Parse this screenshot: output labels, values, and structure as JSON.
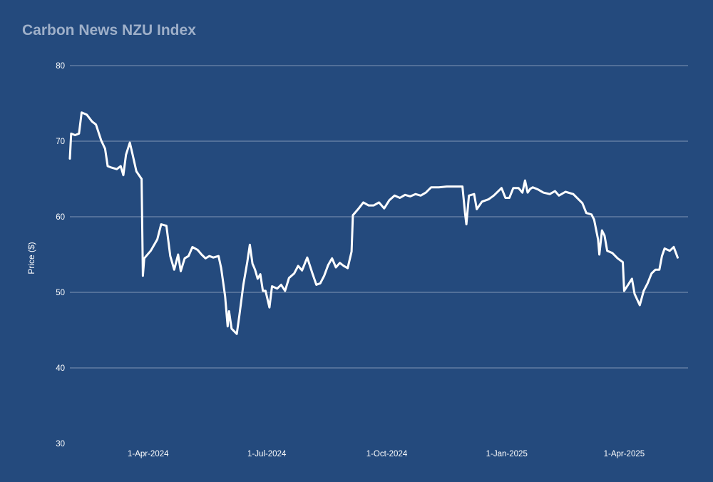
{
  "chart_data": {
    "type": "line",
    "title": "Carbon News NZU Index",
    "ylabel": "Price ($)",
    "xlabel": "",
    "ylim": [
      30,
      80
    ],
    "xlim": [
      "2024-02-01",
      "2025-05-20"
    ],
    "grid": true,
    "yticks": [
      30,
      40,
      50,
      60,
      70,
      80
    ],
    "xticks": [
      {
        "date": "2024-04-01",
        "label": "1-Apr-2024"
      },
      {
        "date": "2024-07-01",
        "label": "1-Jul-2024"
      },
      {
        "date": "2024-10-01",
        "label": "1-Oct-2024"
      },
      {
        "date": "2025-01-01",
        "label": "1-Jan-2025"
      },
      {
        "date": "2025-04-01",
        "label": "1-Apr-2025"
      }
    ],
    "series": [
      {
        "color": "#ffffff",
        "points": [
          [
            "2024-02-01",
            67.7
          ],
          [
            "2024-02-02",
            71.0
          ],
          [
            "2024-02-05",
            70.8
          ],
          [
            "2024-02-08",
            71.0
          ],
          [
            "2024-02-10",
            73.8
          ],
          [
            "2024-02-14",
            73.5
          ],
          [
            "2024-02-18",
            72.6
          ],
          [
            "2024-02-21",
            72.2
          ],
          [
            "2024-02-25",
            70.1
          ],
          [
            "2024-02-28",
            69.0
          ],
          [
            "2024-03-01",
            66.7
          ],
          [
            "2024-03-04",
            66.5
          ],
          [
            "2024-03-08",
            66.3
          ],
          [
            "2024-03-11",
            66.7
          ],
          [
            "2024-03-13",
            65.5
          ],
          [
            "2024-03-15",
            68.2
          ],
          [
            "2024-03-18",
            69.8
          ],
          [
            "2024-03-20",
            68.3
          ],
          [
            "2024-03-23",
            66.0
          ],
          [
            "2024-03-27",
            65.0
          ],
          [
            "2024-03-28",
            52.2
          ],
          [
            "2024-03-29",
            54.5
          ],
          [
            "2024-04-03",
            55.5
          ],
          [
            "2024-04-08",
            57.0
          ],
          [
            "2024-04-11",
            59.0
          ],
          [
            "2024-04-15",
            58.8
          ],
          [
            "2024-04-18",
            54.8
          ],
          [
            "2024-04-21",
            53.0
          ],
          [
            "2024-04-24",
            55.0
          ],
          [
            "2024-04-26",
            52.8
          ],
          [
            "2024-04-29",
            54.5
          ],
          [
            "2024-05-02",
            54.8
          ],
          [
            "2024-05-05",
            56.0
          ],
          [
            "2024-05-09",
            55.6
          ],
          [
            "2024-05-12",
            55.0
          ],
          [
            "2024-05-15",
            54.5
          ],
          [
            "2024-05-18",
            54.8
          ],
          [
            "2024-05-21",
            54.6
          ],
          [
            "2024-05-25",
            54.8
          ],
          [
            "2024-05-27",
            53.2
          ],
          [
            "2024-05-30",
            49.5
          ],
          [
            "2024-06-01",
            45.5
          ],
          [
            "2024-06-02",
            47.5
          ],
          [
            "2024-06-04",
            45.2
          ],
          [
            "2024-06-08",
            44.5
          ],
          [
            "2024-06-10",
            47.0
          ],
          [
            "2024-06-13",
            51.0
          ],
          [
            "2024-06-16",
            54.0
          ],
          [
            "2024-06-18",
            56.3
          ],
          [
            "2024-06-20",
            53.8
          ],
          [
            "2024-06-22",
            53.0
          ],
          [
            "2024-06-24",
            51.8
          ],
          [
            "2024-06-26",
            52.4
          ],
          [
            "2024-06-28",
            50.2
          ],
          [
            "2024-06-30",
            50.2
          ],
          [
            "2024-07-03",
            48.0
          ],
          [
            "2024-07-05",
            50.8
          ],
          [
            "2024-07-09",
            50.5
          ],
          [
            "2024-07-12",
            51.0
          ],
          [
            "2024-07-15",
            50.2
          ],
          [
            "2024-07-18",
            51.9
          ],
          [
            "2024-07-22",
            52.5
          ],
          [
            "2024-07-25",
            53.5
          ],
          [
            "2024-07-28",
            52.9
          ],
          [
            "2024-08-01",
            54.6
          ],
          [
            "2024-08-05",
            52.5
          ],
          [
            "2024-08-08",
            51.0
          ],
          [
            "2024-08-11",
            51.2
          ],
          [
            "2024-08-14",
            52.2
          ],
          [
            "2024-08-17",
            53.6
          ],
          [
            "2024-08-20",
            54.5
          ],
          [
            "2024-08-23",
            53.3
          ],
          [
            "2024-08-26",
            53.9
          ],
          [
            "2024-08-29",
            53.5
          ],
          [
            "2024-09-01",
            53.2
          ],
          [
            "2024-09-04",
            55.4
          ],
          [
            "2024-09-05",
            60.2
          ],
          [
            "2024-09-09",
            61.0
          ],
          [
            "2024-09-13",
            61.9
          ],
          [
            "2024-09-17",
            61.5
          ],
          [
            "2024-09-21",
            61.5
          ],
          [
            "2024-09-25",
            61.9
          ],
          [
            "2024-09-29",
            61.1
          ],
          [
            "2024-10-03",
            62.2
          ],
          [
            "2024-10-07",
            62.8
          ],
          [
            "2024-10-11",
            62.5
          ],
          [
            "2024-10-15",
            62.9
          ],
          [
            "2024-10-19",
            62.7
          ],
          [
            "2024-10-23",
            63.0
          ],
          [
            "2024-10-27",
            62.8
          ],
          [
            "2024-10-31",
            63.2
          ],
          [
            "2024-11-04",
            63.9
          ],
          [
            "2024-11-10",
            63.9
          ],
          [
            "2024-11-16",
            64.0
          ],
          [
            "2024-11-22",
            64.0
          ],
          [
            "2024-11-28",
            64.0
          ],
          [
            "2024-11-30",
            60.5
          ],
          [
            "2024-12-01",
            59.0
          ],
          [
            "2024-12-03",
            62.8
          ],
          [
            "2024-12-07",
            63.0
          ],
          [
            "2024-12-09",
            61.0
          ],
          [
            "2024-12-13",
            62.0
          ],
          [
            "2024-12-18",
            62.3
          ],
          [
            "2024-12-22",
            62.8
          ],
          [
            "2024-12-28",
            63.8
          ],
          [
            "2024-12-31",
            62.5
          ],
          [
            "2025-01-03",
            62.5
          ],
          [
            "2025-01-06",
            63.8
          ],
          [
            "2025-01-10",
            63.8
          ],
          [
            "2025-01-13",
            63.2
          ],
          [
            "2025-01-15",
            64.8
          ],
          [
            "2025-01-17",
            63.2
          ],
          [
            "2025-01-19",
            63.7
          ],
          [
            "2025-01-21",
            63.9
          ],
          [
            "2025-01-25",
            63.6
          ],
          [
            "2025-01-29",
            63.2
          ],
          [
            "2025-02-03",
            63.0
          ],
          [
            "2025-02-07",
            63.4
          ],
          [
            "2025-02-10",
            62.8
          ],
          [
            "2025-02-15",
            63.3
          ],
          [
            "2025-02-21",
            63.0
          ],
          [
            "2025-02-25",
            62.3
          ],
          [
            "2025-02-28",
            61.8
          ],
          [
            "2025-03-03",
            60.5
          ],
          [
            "2025-03-07",
            60.3
          ],
          [
            "2025-03-09",
            59.6
          ],
          [
            "2025-03-12",
            57.0
          ],
          [
            "2025-03-13",
            55.0
          ],
          [
            "2025-03-15",
            58.2
          ],
          [
            "2025-03-17",
            57.5
          ],
          [
            "2025-03-19",
            55.5
          ],
          [
            "2025-03-23",
            55.2
          ],
          [
            "2025-03-27",
            54.5
          ],
          [
            "2025-03-31",
            54.0
          ],
          [
            "2025-04-01",
            50.2
          ],
          [
            "2025-04-04",
            51.0
          ],
          [
            "2025-04-07",
            51.8
          ],
          [
            "2025-04-09",
            49.8
          ],
          [
            "2025-04-13",
            48.3
          ],
          [
            "2025-04-16",
            50.2
          ],
          [
            "2025-04-19",
            51.2
          ],
          [
            "2025-04-22",
            52.5
          ],
          [
            "2025-04-25",
            53.0
          ],
          [
            "2025-04-28",
            53.0
          ],
          [
            "2025-04-30",
            54.8
          ],
          [
            "2025-05-02",
            55.8
          ],
          [
            "2025-05-06",
            55.5
          ],
          [
            "2025-05-09",
            56.0
          ],
          [
            "2025-05-12",
            54.6
          ]
        ]
      }
    ]
  }
}
